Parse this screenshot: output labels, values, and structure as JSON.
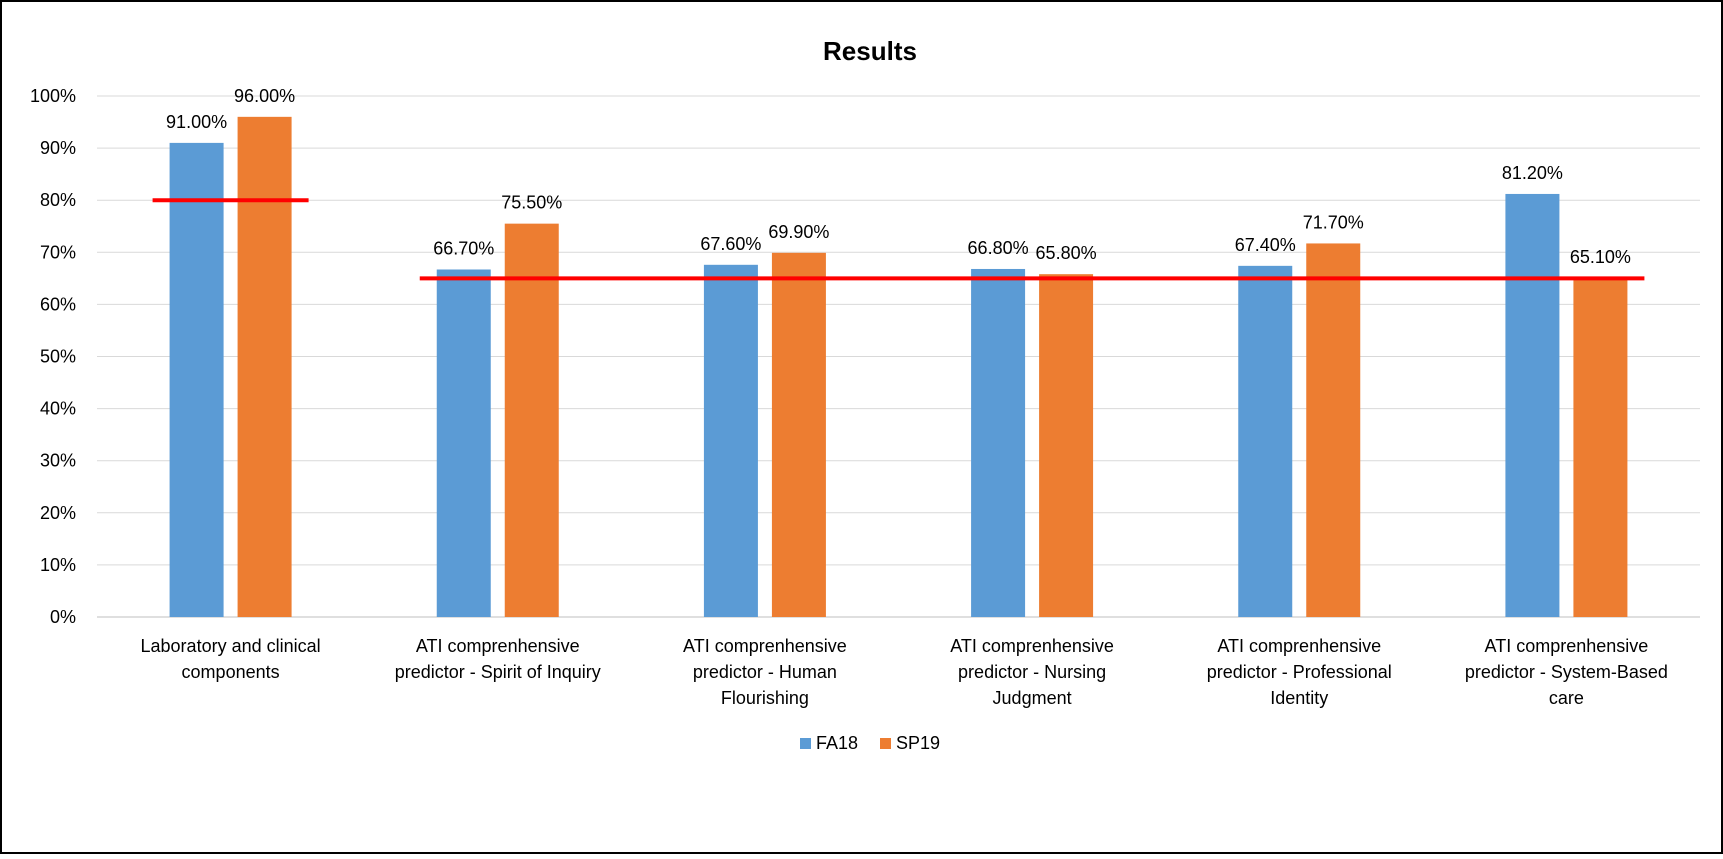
{
  "chart_data": {
    "type": "bar",
    "title": "Results",
    "xlabel": "",
    "ylabel": "",
    "ylim": [
      0,
      100
    ],
    "y_ticks": [
      "0%",
      "10%",
      "20%",
      "30%",
      "40%",
      "50%",
      "60%",
      "70%",
      "80%",
      "90%",
      "100%"
    ],
    "grid": true,
    "legend_position": "bottom",
    "categories": [
      [
        "Laboratory and clinical",
        "components"
      ],
      [
        "ATI comprenhensive",
        "predictor - Spirit of Inquiry"
      ],
      [
        "ATI comprenhensive",
        "predictor - Human",
        "Flourishing"
      ],
      [
        "ATI comprenhensive",
        "predictor - Nursing",
        "Judgment"
      ],
      [
        "ATI comprenhensive",
        "predictor - Professional",
        "Identity"
      ],
      [
        "ATI comprenhensive",
        "predictor - System-Based",
        "care"
      ]
    ],
    "series": [
      {
        "name": "FA18",
        "color": "#5B9BD5",
        "values": [
          91.0,
          66.7,
          67.6,
          66.8,
          67.4,
          81.2
        ],
        "labels": [
          "91.00%",
          "66.70%",
          "67.60%",
          "66.80%",
          "67.40%",
          "81.20%"
        ]
      },
      {
        "name": "SP19",
        "color": "#ED7D31",
        "values": [
          96.0,
          75.5,
          69.9,
          65.8,
          71.7,
          65.1
        ],
        "labels": [
          "96.00%",
          "75.50%",
          "69.90%",
          "65.80%",
          "71.70%",
          "65.10%"
        ]
      }
    ],
    "benchmark_lines": [
      {
        "value": 80,
        "from_category": 0,
        "to_category": 0,
        "color": "#FF0000"
      },
      {
        "value": 65,
        "from_category": 1,
        "to_category": 5,
        "color": "#FF0000"
      }
    ]
  }
}
